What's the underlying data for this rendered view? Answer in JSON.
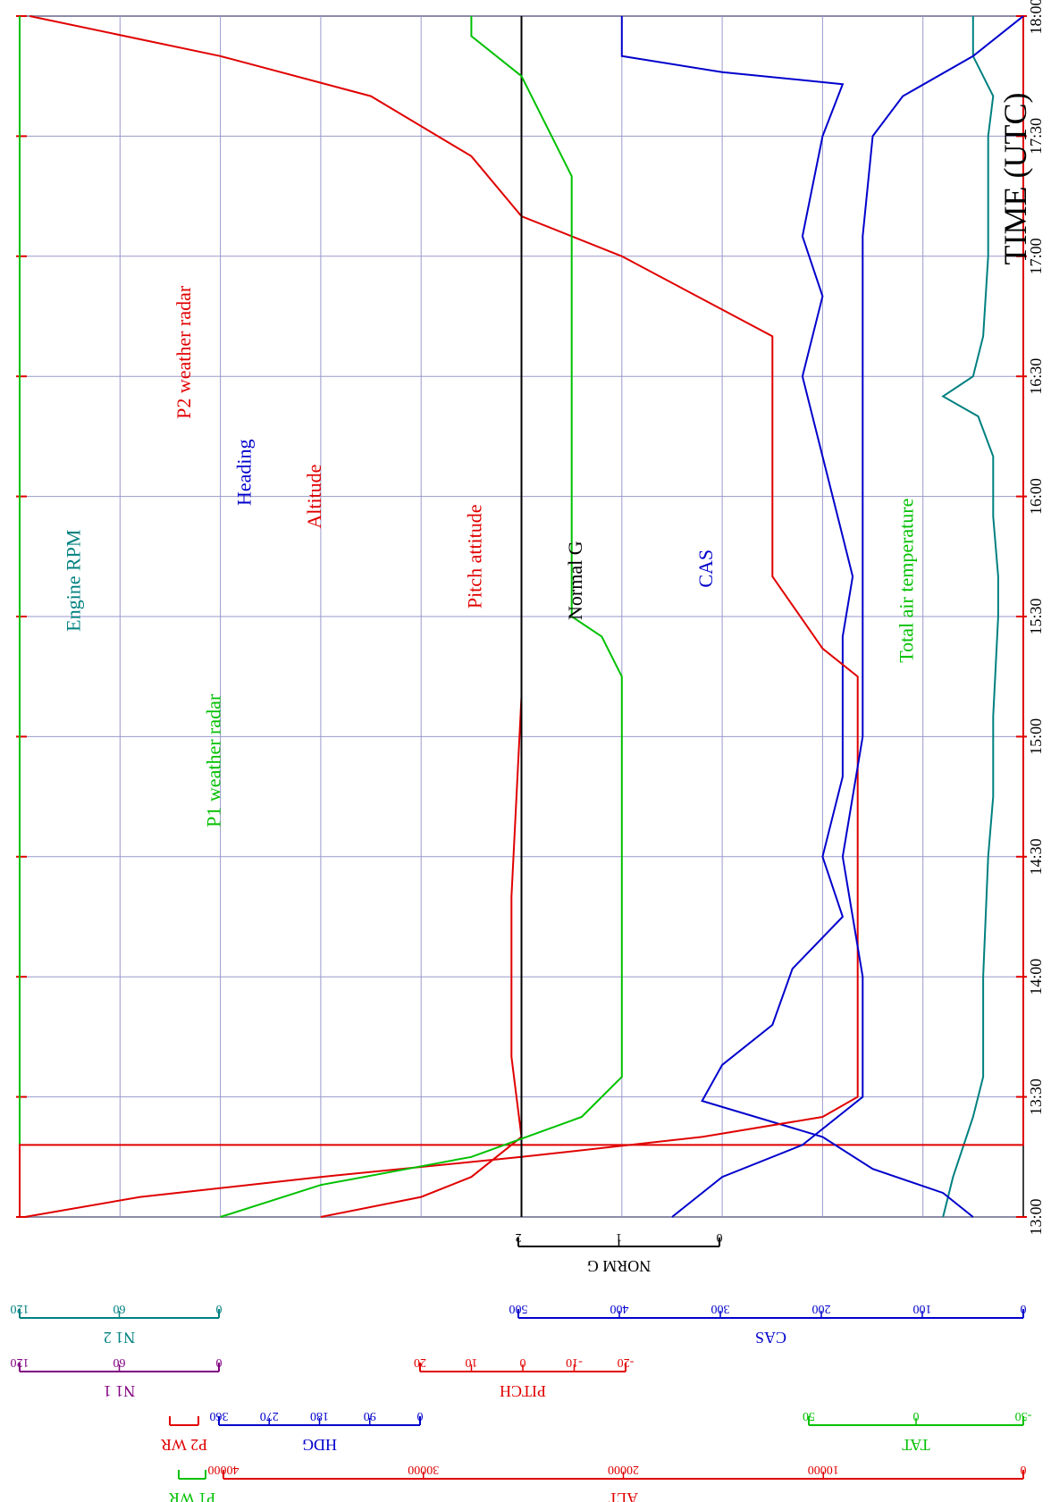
{
  "chart_data": {
    "type": "line",
    "orientation": "rotated-90-clockwise",
    "time_axis": {
      "label": "TIME (UTC)",
      "ticks": [
        "13:00",
        "13:30",
        "14:00",
        "14:30",
        "15:00",
        "15:30",
        "16:00",
        "16:30",
        "17:00",
        "17:30",
        "18:00"
      ],
      "range_minutes": [
        0,
        300
      ]
    },
    "grid": true,
    "series": [
      {
        "name": "Engine RPM",
        "color": "#008080",
        "label_pos": [
          0.06,
          0.47
        ],
        "values": [
          [
            0,
            0.92
          ],
          [
            10,
            0.93
          ],
          [
            25,
            0.95
          ],
          [
            35,
            0.96
          ],
          [
            60,
            0.96
          ],
          [
            90,
            0.965
          ],
          [
            105,
            0.97
          ],
          [
            125,
            0.97
          ],
          [
            150,
            0.975
          ],
          [
            160,
            0.975
          ],
          [
            175,
            0.97
          ],
          [
            190,
            0.97
          ],
          [
            200,
            0.955
          ],
          [
            205,
            0.92
          ],
          [
            210,
            0.95
          ],
          [
            220,
            0.96
          ],
          [
            240,
            0.965
          ],
          [
            270,
            0.965
          ],
          [
            280,
            0.97
          ],
          [
            290,
            0.95
          ],
          [
            300,
            0.95
          ]
        ]
      },
      {
        "name": "P1 weather radar",
        "color": "#00c000",
        "label_pos": [
          0.2,
          0.62
        ],
        "values": [
          [
            0,
            0
          ],
          [
            300,
            0
          ]
        ]
      },
      {
        "name": "P2 weather radar",
        "color": "#e00000",
        "label_pos": [
          0.17,
          0.28
        ],
        "values": [
          [
            0,
            0
          ],
          [
            18,
            0
          ],
          [
            18,
            1
          ],
          [
            300,
            1
          ]
        ]
      },
      {
        "name": "Heading",
        "color": "#0000cc",
        "label_pos": [
          0.23,
          0.38
        ],
        "values": [
          [
            0,
            0.95
          ],
          [
            6,
            0.92
          ],
          [
            12,
            0.85
          ],
          [
            20,
            0.8
          ],
          [
            29,
            0.68
          ],
          [
            38,
            0.7
          ],
          [
            48,
            0.75
          ],
          [
            62,
            0.77
          ],
          [
            75,
            0.82
          ],
          [
            90,
            0.8
          ],
          [
            110,
            0.82
          ],
          [
            145,
            0.82
          ],
          [
            160,
            0.83
          ],
          [
            170,
            0.82
          ],
          [
            190,
            0.8
          ],
          [
            210,
            0.78
          ],
          [
            230,
            0.8
          ],
          [
            245,
            0.78
          ],
          [
            270,
            0.8
          ],
          [
            283,
            0.82
          ],
          [
            286,
            0.7
          ],
          [
            290,
            0.6
          ],
          [
            300,
            0.6
          ]
        ]
      },
      {
        "name": "Altitude",
        "color": "#e00000",
        "label_pos": [
          0.3,
          0.4
        ],
        "values": [
          [
            0,
            0.005
          ],
          [
            5,
            0.12
          ],
          [
            10,
            0.3
          ],
          [
            15,
            0.5
          ],
          [
            20,
            0.68
          ],
          [
            25,
            0.8
          ],
          [
            30,
            0.835
          ],
          [
            60,
            0.835
          ],
          [
            100,
            0.835
          ],
          [
            135,
            0.835
          ],
          [
            142,
            0.8
          ],
          [
            160,
            0.75
          ],
          [
            220,
            0.75
          ],
          [
            240,
            0.6
          ],
          [
            250,
            0.5
          ],
          [
            265,
            0.45
          ],
          [
            280,
            0.35
          ],
          [
            290,
            0.2
          ],
          [
            300,
            0.01
          ]
        ]
      },
      {
        "name": "Pitch attitude",
        "color": "#e00000",
        "label_pos": [
          0.46,
          0.45
        ],
        "values": [
          [
            0,
            0.3
          ],
          [
            5,
            0.4
          ],
          [
            10,
            0.45
          ],
          [
            20,
            0.5
          ],
          [
            40,
            0.49
          ],
          [
            80,
            0.49
          ],
          [
            130,
            0.5
          ],
          [
            140,
            0.5
          ],
          [
            160,
            0.5
          ],
          [
            240,
            0.5
          ],
          [
            270,
            0.5
          ],
          [
            280,
            0.5
          ],
          [
            300,
            0.5
          ]
        ]
      },
      {
        "name": "Normal G",
        "color": "#000000",
        "label_pos": [
          0.56,
          0.47
        ],
        "values": [
          [
            0,
            0.5
          ],
          [
            300,
            0.5
          ]
        ]
      },
      {
        "name": "CAS",
        "color": "#0000cc",
        "label_pos": [
          0.69,
          0.46
        ],
        "values": [
          [
            0,
            0.65
          ],
          [
            10,
            0.7
          ],
          [
            18,
            0.78
          ],
          [
            30,
            0.84
          ],
          [
            60,
            0.84
          ],
          [
            90,
            0.82
          ],
          [
            120,
            0.84
          ],
          [
            138,
            0.84
          ],
          [
            150,
            0.84
          ],
          [
            165,
            0.84
          ],
          [
            200,
            0.84
          ],
          [
            245,
            0.84
          ],
          [
            270,
            0.85
          ],
          [
            280,
            0.88
          ],
          [
            290,
            0.95
          ],
          [
            300,
            1.0
          ]
        ]
      },
      {
        "name": "Total air temperature",
        "color": "#00c000",
        "label_pos": [
          0.89,
          0.47
        ],
        "values": [
          [
            0,
            0.2
          ],
          [
            8,
            0.3
          ],
          [
            15,
            0.45
          ],
          [
            25,
            0.56
          ],
          [
            35,
            0.6
          ],
          [
            60,
            0.6
          ],
          [
            100,
            0.6
          ],
          [
            135,
            0.6
          ],
          [
            145,
            0.58
          ],
          [
            150,
            0.55
          ],
          [
            180,
            0.55
          ],
          [
            260,
            0.55
          ],
          [
            285,
            0.5
          ],
          [
            295,
            0.45
          ],
          [
            300,
            0.45
          ]
        ]
      }
    ],
    "scales": [
      {
        "name": "ALT",
        "color": "#e00000",
        "ticks": [
          "0",
          "10000",
          "20000",
          "30000",
          "40000"
        ]
      },
      {
        "name": "P1 WR",
        "color": "#00c000",
        "ticks": []
      },
      {
        "name": "TAT",
        "color": "#00c000",
        "ticks": [
          "-50",
          "0",
          "50"
        ]
      },
      {
        "name": "HDG",
        "color": "#0000cc",
        "ticks": [
          "0",
          "90",
          "180",
          "270",
          "360"
        ]
      },
      {
        "name": "P2 WR",
        "color": "#e00000",
        "ticks": []
      },
      {
        "name": "PITCH",
        "color": "#e00000",
        "ticks": [
          "-20",
          "-10",
          "0",
          "10",
          "20"
        ]
      },
      {
        "name": "N1 1",
        "color": "#800080",
        "ticks": [
          "0",
          "60",
          "120"
        ]
      },
      {
        "name": "CAS",
        "color": "#0000cc",
        "ticks": [
          "0",
          "100",
          "200",
          "300",
          "400",
          "500"
        ]
      },
      {
        "name": "N1 2",
        "color": "#008080",
        "ticks": [
          "0",
          "60",
          "120"
        ]
      },
      {
        "name": "NORM G",
        "color": "#000000",
        "ticks": [
          "0",
          "1",
          "2"
        ]
      }
    ]
  }
}
